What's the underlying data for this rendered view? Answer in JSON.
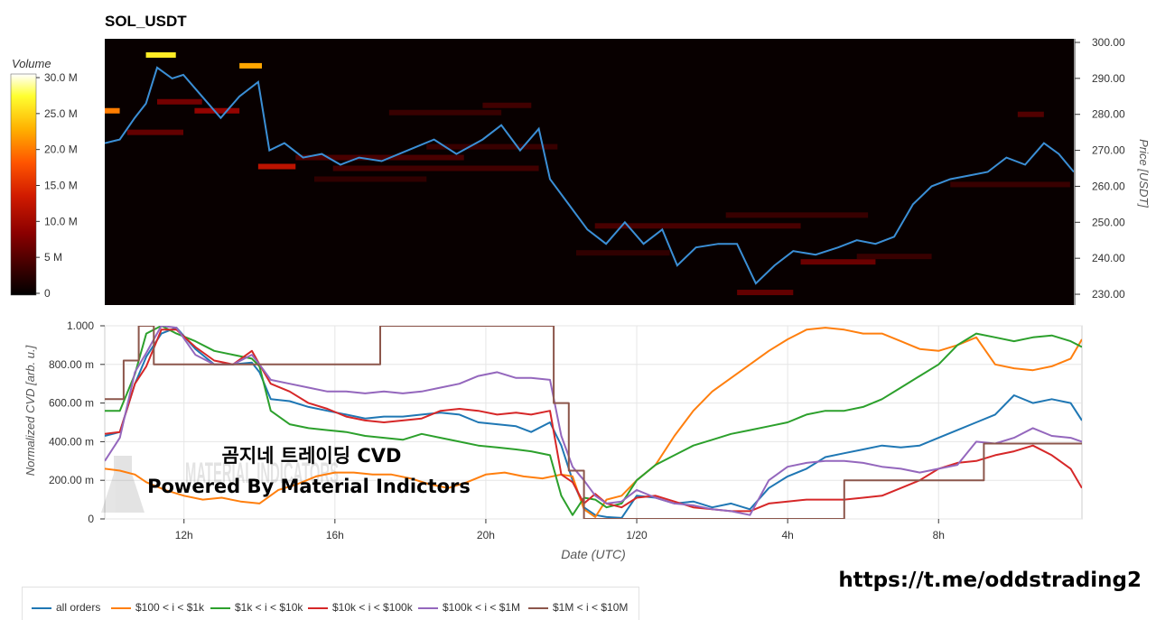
{
  "chart_data": [
    {
      "type": "heatmap",
      "title": "SOL_USDT",
      "ylabel": "Price [USDT]",
      "ylim": [
        227,
        301
      ],
      "yticks": [
        "300.00",
        "290.00",
        "280.00",
        "270.00",
        "260.00",
        "250.00",
        "240.00",
        "230.00"
      ],
      "ytick_values": [
        300,
        290,
        280,
        270,
        260,
        250,
        240,
        230
      ],
      "colorbar": {
        "title": "Volume",
        "range": [
          0,
          30000000
        ],
        "ticks": [
          "30.0 M",
          "25.0 M",
          "20.0 M",
          "15.0 M",
          "10.0 M",
          "5 M",
          "0"
        ],
        "tick_values": [
          30000000,
          25000000,
          20000000,
          15000000,
          10000000,
          5000000,
          0
        ],
        "colors": [
          "#000000",
          "#3a0000",
          "#8b0000",
          "#d11b00",
          "#ff5500",
          "#ffb000",
          "#ffff30",
          "#ffffff"
        ]
      },
      "x_hours": [
        9.9,
        10.3,
        10.7,
        11.0,
        11.3,
        11.7,
        12.0,
        12.5,
        13.0,
        13.5,
        14.0,
        14.3,
        14.7,
        15.2,
        15.7,
        16.2,
        16.7,
        17.3,
        18.0,
        18.7,
        19.3,
        20.0,
        20.5,
        21.0,
        21.5,
        21.8,
        22.3,
        22.8,
        23.3,
        23.8,
        24.3,
        24.8,
        25.2,
        25.7,
        26.3,
        26.8,
        27.3,
        27.8,
        28.3,
        28.9,
        29.5,
        30.0,
        30.5,
        31.0,
        31.5,
        32.0,
        32.5,
        33.0,
        33.5,
        34.0,
        34.5,
        35.0,
        35.4,
        35.8
      ],
      "price": [
        272,
        273,
        279,
        283,
        293,
        290,
        291,
        285,
        279,
        285,
        289,
        270,
        272,
        268,
        269,
        266,
        268,
        267,
        270,
        273,
        269,
        273,
        277,
        270,
        276,
        262,
        255,
        248,
        244,
        250,
        244,
        248,
        238,
        243,
        244,
        244,
        233,
        238,
        242,
        241,
        243,
        245,
        244,
        246,
        255,
        260,
        262,
        263,
        264,
        268,
        266,
        272,
        269,
        264
      ],
      "volume_bands": [
        {
          "price": 296.5,
          "from_h": 11.0,
          "to_h": 11.8,
          "volume": 26000000
        },
        {
          "price": 293.5,
          "from_h": 13.5,
          "to_h": 14.1,
          "volume": 22000000
        },
        {
          "price": 281.0,
          "from_h": 9.9,
          "to_h": 10.3,
          "volume": 20000000
        },
        {
          "price": 281.0,
          "from_h": 12.3,
          "to_h": 13.5,
          "volume": 9000000
        },
        {
          "price": 283.5,
          "from_h": 11.3,
          "to_h": 12.5,
          "volume": 7000000
        },
        {
          "price": 275.0,
          "from_h": 10.5,
          "to_h": 12.0,
          "volume": 6000000
        },
        {
          "price": 265.5,
          "from_h": 14.0,
          "to_h": 15.0,
          "volume": 12000000
        },
        {
          "price": 268.0,
          "from_h": 15.0,
          "to_h": 19.5,
          "volume": 4500000
        },
        {
          "price": 265.0,
          "from_h": 16.0,
          "to_h": 21.5,
          "volume": 4000000
        },
        {
          "price": 280.5,
          "from_h": 17.5,
          "to_h": 20.5,
          "volume": 3500000
        },
        {
          "price": 271.0,
          "from_h": 18.5,
          "to_h": 22.0,
          "volume": 3500000
        },
        {
          "price": 282.5,
          "from_h": 20.0,
          "to_h": 21.3,
          "volume": 4000000
        },
        {
          "price": 262.0,
          "from_h": 15.5,
          "to_h": 18.5,
          "volume": 3000000
        },
        {
          "price": 249.0,
          "from_h": 23.0,
          "to_h": 28.5,
          "volume": 4500000
        },
        {
          "price": 252.0,
          "from_h": 26.5,
          "to_h": 30.3,
          "volume": 3500000
        },
        {
          "price": 230.5,
          "from_h": 26.8,
          "to_h": 28.3,
          "volume": 6000000
        },
        {
          "price": 241.5,
          "from_h": 22.5,
          "to_h": 25.0,
          "volume": 3000000
        },
        {
          "price": 239.0,
          "from_h": 28.5,
          "to_h": 30.5,
          "volume": 6500000
        },
        {
          "price": 240.5,
          "from_h": 30.0,
          "to_h": 32.0,
          "volume": 3500000
        },
        {
          "price": 260.5,
          "from_h": 32.5,
          "to_h": 35.7,
          "volume": 3500000
        },
        {
          "price": 280.0,
          "from_h": 34.3,
          "to_h": 35.0,
          "volume": 5000000
        }
      ]
    },
    {
      "type": "line",
      "xlabel": "Date (UTC)",
      "ylabel": "Normalized CVD [arb. u.]",
      "ylim": [
        0,
        1000
      ],
      "xlim_hours": [
        9.9,
        35.8
      ],
      "yticks": [
        "1.000",
        "800.00 m",
        "600.00 m",
        "400.00 m",
        "200.00 m",
        "0"
      ],
      "ytick_values": [
        1000,
        800,
        600,
        400,
        200,
        0
      ],
      "xticks": [
        "12h",
        "16h",
        "20h",
        "1/20",
        "4h",
        "8h"
      ],
      "xtick_values": [
        12,
        16,
        20,
        24,
        28,
        32
      ],
      "series": [
        {
          "name": "all orders",
          "color": "#1f77b4",
          "x": [
            9.9,
            10.3,
            10.7,
            11.0,
            11.4,
            11.8,
            12.3,
            12.8,
            13.3,
            13.8,
            14.0,
            14.3,
            14.8,
            15.3,
            15.8,
            16.3,
            16.8,
            17.3,
            17.8,
            18.3,
            18.8,
            19.3,
            19.8,
            20.3,
            20.8,
            21.2,
            21.7,
            22.0,
            22.3,
            22.6,
            22.9,
            23.2,
            23.6,
            24.0,
            24.5,
            25.0,
            25.5,
            26.0,
            26.5,
            27.0,
            27.5,
            28.0,
            28.5,
            29.0,
            29.5,
            30.0,
            30.5,
            31.0,
            31.5,
            32.0,
            32.5,
            33.0,
            33.5,
            34.0,
            34.5,
            35.0,
            35.5,
            35.8
          ],
          "y": [
            430,
            450,
            700,
            840,
            960,
            990,
            880,
            800,
            800,
            810,
            760,
            620,
            610,
            580,
            560,
            540,
            520,
            530,
            530,
            540,
            550,
            540,
            500,
            490,
            480,
            450,
            500,
            380,
            200,
            60,
            20,
            10,
            5,
            120,
            110,
            80,
            90,
            60,
            80,
            50,
            160,
            220,
            260,
            320,
            340,
            360,
            380,
            370,
            380,
            420,
            460,
            500,
            540,
            640,
            600,
            620,
            600,
            510
          ]
        },
        {
          "name": "$100 < i < $1k",
          "color": "#ff7f0e",
          "x": [
            9.9,
            10.3,
            10.7,
            11.0,
            11.5,
            12.0,
            12.5,
            13.0,
            13.5,
            14.0,
            14.5,
            15.0,
            15.5,
            16.0,
            16.5,
            17.0,
            17.5,
            18.0,
            18.5,
            19.0,
            19.5,
            20.0,
            20.5,
            21.0,
            21.5,
            22.0,
            22.3,
            22.6,
            22.9,
            23.2,
            23.6,
            24.0,
            24.5,
            25.0,
            25.5,
            26.0,
            26.5,
            27.0,
            27.5,
            28.0,
            28.5,
            29.0,
            29.5,
            30.0,
            30.5,
            31.0,
            31.5,
            32.0,
            32.5,
            33.0,
            33.5,
            34.0,
            34.5,
            35.0,
            35.5,
            35.8
          ],
          "y": [
            260,
            250,
            230,
            190,
            150,
            120,
            100,
            110,
            90,
            80,
            150,
            180,
            220,
            240,
            240,
            230,
            230,
            210,
            180,
            160,
            190,
            230,
            240,
            220,
            210,
            230,
            220,
            50,
            10,
            100,
            120,
            200,
            280,
            430,
            560,
            660,
            730,
            800,
            870,
            930,
            980,
            990,
            980,
            960,
            960,
            920,
            880,
            870,
            900,
            940,
            800,
            780,
            770,
            790,
            830,
            930
          ]
        },
        {
          "name": "$1k < i < $10k",
          "color": "#2ca02c",
          "x": [
            9.9,
            10.3,
            10.7,
            11.0,
            11.4,
            11.8,
            12.3,
            12.8,
            13.3,
            13.8,
            14.0,
            14.3,
            14.8,
            15.3,
            15.8,
            16.3,
            16.8,
            17.3,
            17.8,
            18.3,
            18.8,
            19.3,
            19.8,
            20.3,
            20.8,
            21.2,
            21.7,
            22.0,
            22.3,
            22.6,
            22.9,
            23.2,
            23.6,
            24.0,
            24.5,
            25.0,
            25.5,
            26.0,
            26.5,
            27.0,
            27.5,
            28.0,
            28.5,
            29.0,
            29.5,
            30.0,
            30.5,
            31.0,
            31.5,
            32.0,
            32.5,
            33.0,
            33.5,
            34.0,
            34.5,
            35.0,
            35.5,
            35.8
          ],
          "y": [
            560,
            560,
            750,
            960,
            1000,
            960,
            920,
            870,
            850,
            830,
            790,
            560,
            490,
            470,
            460,
            450,
            430,
            420,
            410,
            440,
            420,
            400,
            380,
            370,
            360,
            350,
            330,
            120,
            20,
            110,
            100,
            60,
            80,
            200,
            280,
            330,
            380,
            410,
            440,
            460,
            480,
            500,
            540,
            560,
            560,
            580,
            620,
            680,
            740,
            800,
            900,
            960,
            940,
            920,
            940,
            950,
            920,
            890
          ]
        },
        {
          "name": "$10k < i < $100k",
          "color": "#d62728",
          "x": [
            9.9,
            10.3,
            10.7,
            11.0,
            11.4,
            11.8,
            12.3,
            12.8,
            13.3,
            13.8,
            14.0,
            14.3,
            14.8,
            15.3,
            15.8,
            16.3,
            16.8,
            17.3,
            17.8,
            18.3,
            18.8,
            19.3,
            19.8,
            20.3,
            20.8,
            21.2,
            21.7,
            22.0,
            22.3,
            22.6,
            22.9,
            23.2,
            23.6,
            24.0,
            24.5,
            25.0,
            25.5,
            26.0,
            26.5,
            27.0,
            27.5,
            28.0,
            28.5,
            29.0,
            29.5,
            30.0,
            30.5,
            31.0,
            31.5,
            32.0,
            32.5,
            33.0,
            33.5,
            34.0,
            34.5,
            35.0,
            35.5,
            35.8
          ],
          "y": [
            440,
            450,
            700,
            790,
            980,
            980,
            890,
            820,
            800,
            870,
            800,
            700,
            660,
            600,
            570,
            530,
            510,
            500,
            510,
            520,
            560,
            570,
            560,
            540,
            550,
            540,
            560,
            230,
            190,
            80,
            130,
            80,
            60,
            110,
            120,
            90,
            60,
            50,
            40,
            40,
            80,
            90,
            100,
            100,
            100,
            110,
            120,
            160,
            200,
            260,
            290,
            300,
            330,
            350,
            380,
            330,
            260,
            160
          ]
        },
        {
          "name": "$100k < i < $1M",
          "color": "#9467bd",
          "x": [
            9.9,
            10.3,
            10.7,
            11.0,
            11.4,
            11.8,
            12.3,
            12.8,
            13.3,
            13.8,
            14.0,
            14.3,
            14.8,
            15.3,
            15.8,
            16.3,
            16.8,
            17.3,
            17.8,
            18.3,
            18.8,
            19.3,
            19.8,
            20.3,
            20.8,
            21.2,
            21.7,
            22.0,
            22.3,
            22.6,
            22.9,
            23.2,
            23.6,
            24.0,
            24.5,
            25.0,
            25.5,
            26.0,
            26.5,
            27.0,
            27.5,
            28.0,
            28.5,
            29.0,
            29.5,
            30.0,
            30.5,
            31.0,
            31.5,
            32.0,
            32.5,
            33.0,
            33.5,
            34.0,
            34.5,
            35.0,
            35.5,
            35.8
          ],
          "y": [
            300,
            420,
            760,
            860,
            1000,
            990,
            850,
            800,
            800,
            850,
            800,
            720,
            700,
            680,
            660,
            660,
            650,
            660,
            650,
            660,
            680,
            700,
            740,
            760,
            730,
            730,
            720,
            430,
            270,
            200,
            120,
            80,
            90,
            150,
            110,
            80,
            70,
            50,
            40,
            20,
            200,
            270,
            290,
            300,
            300,
            290,
            270,
            260,
            240,
            260,
            280,
            400,
            390,
            420,
            470,
            430,
            420,
            400
          ]
        },
        {
          "name": "$1M < i < $10M",
          "color": "#8c564b",
          "x": [
            9.9,
            10.4,
            10.4,
            10.8,
            10.8,
            11.2,
            11.2,
            11.8,
            11.8,
            17.2,
            17.2,
            21.8,
            21.8,
            22.2,
            22.2,
            22.6,
            22.6,
            29.5,
            29.5,
            31.5,
            31.5,
            33.2,
            33.2,
            35.8
          ],
          "y": [
            620,
            620,
            820,
            820,
            1000,
            1000,
            800,
            800,
            800,
            800,
            1000,
            1000,
            600,
            600,
            250,
            250,
            0,
            0,
            200,
            200,
            200,
            200,
            390,
            390
          ]
        }
      ]
    }
  ],
  "labels": {
    "title": "SOL_USDT",
    "colorbar_title": "Volume",
    "price_axis_label": "Price [USDT]",
    "cvd_axis_label": "Normalized CVD [arb. u.]",
    "date_axis_label": "Date (UTC)",
    "overlay_line1": "곰지네 트레이딩 CVD",
    "overlay_line2": "Powered By Material Indictors",
    "watermark_logo": "MATERIAL INDICATORS",
    "url": "https://t.me/oddstrading2"
  }
}
